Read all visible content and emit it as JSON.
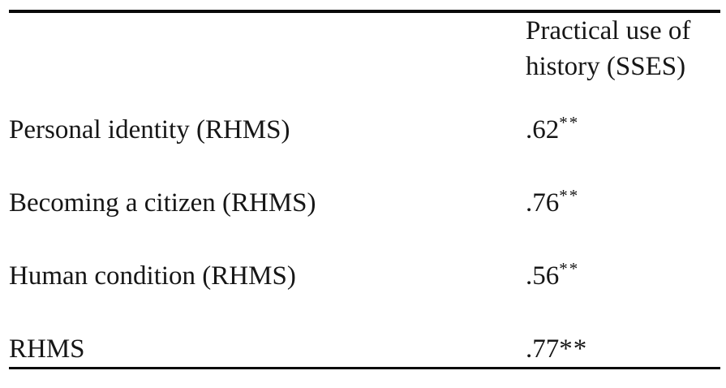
{
  "table": {
    "header": {
      "col1": "",
      "col2": "Practical use of history (SSES)"
    },
    "rows": [
      {
        "label": "Personal identity (RHMS)",
        "value": ".62",
        "sig_sup": "**",
        "sig_inline": ""
      },
      {
        "label": "Becoming a citizen (RHMS)",
        "value": ".76",
        "sig_sup": "**",
        "sig_inline": ""
      },
      {
        "label": "Human condition (RHMS)",
        "value": ".56",
        "sig_sup": "**",
        "sig_inline": ""
      },
      {
        "label": "RHMS",
        "value": ".77",
        "sig_sup": "",
        "sig_inline": "**"
      }
    ],
    "text_color": "#161616",
    "rule_color": "#0a0a0a"
  }
}
